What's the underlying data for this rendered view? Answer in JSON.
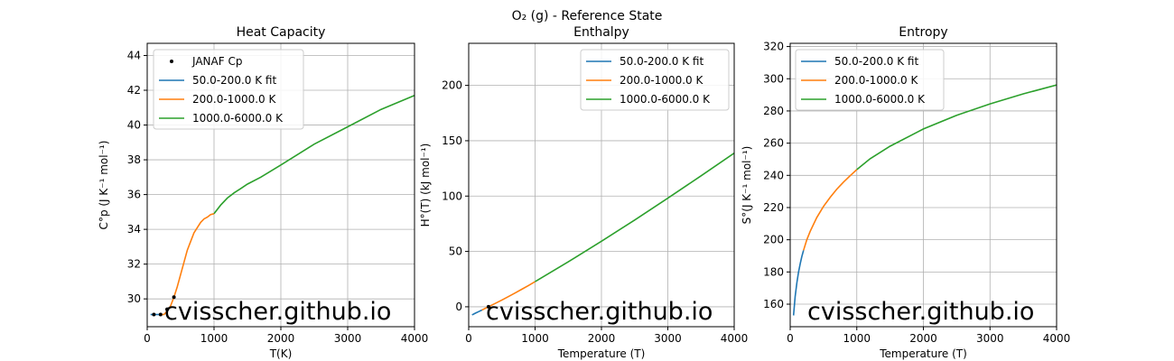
{
  "suptitle": "O₂ (g) - Reference State",
  "watermark": "cvisscher.github.io",
  "colors": {
    "blue": "#1f77b4",
    "orange": "#ff7f0e",
    "green": "#2ca02c",
    "grid": "#b0b0b0",
    "watermark": "#bfbfbf"
  },
  "chart_data": [
    {
      "type": "line",
      "title": "Heat Capacity",
      "xlabel": "T(K)",
      "ylabel": "C°p (J K⁻¹ mol⁻¹)",
      "xlim": [
        0,
        4000
      ],
      "ylim": [
        28.4,
        44.7
      ],
      "xticks": [
        0,
        1000,
        2000,
        3000,
        4000
      ],
      "yticks": [
        30,
        32,
        34,
        36,
        38,
        40,
        42,
        44
      ],
      "grid": true,
      "legend": "upper-left",
      "series": [
        {
          "name": "JANAF Cp",
          "kind": "points",
          "color": "#000000",
          "x": [
            100,
            200,
            298.15,
            300,
            400
          ],
          "y": [
            29.1,
            29.1,
            29.4,
            29.4,
            30.1
          ]
        },
        {
          "name": "50.0-200.0 K fit",
          "kind": "line",
          "color": "#1f77b4",
          "x": [
            50,
            100,
            150,
            200
          ],
          "y": [
            29.1,
            29.1,
            29.1,
            29.1
          ]
        },
        {
          "name": "200.0-1000.0 K",
          "kind": "line",
          "color": "#ff7f0e",
          "x": [
            200,
            250,
            300,
            350,
            400,
            450,
            500,
            550,
            600,
            650,
            700,
            750,
            800,
            850,
            900,
            950,
            1000
          ],
          "y": [
            29.1,
            29.1,
            29.3,
            29.6,
            30.1,
            30.7,
            31.4,
            32.1,
            32.8,
            33.3,
            33.8,
            34.1,
            34.4,
            34.6,
            34.7,
            34.85,
            34.9
          ]
        },
        {
          "name": "1000.0-6000.0 K",
          "kind": "line",
          "color": "#2ca02c",
          "x": [
            1000,
            1100,
            1200,
            1300,
            1400,
            1500,
            1700,
            2000,
            2500,
            3000,
            3500,
            4000
          ],
          "y": [
            34.9,
            35.4,
            35.8,
            36.1,
            36.35,
            36.6,
            37.0,
            37.7,
            38.9,
            39.9,
            40.9,
            41.7
          ]
        }
      ]
    },
    {
      "type": "line",
      "title": "Enthalpy",
      "xlabel": "Temperature (T)",
      "ylabel": "H°(T) (kJ mol⁻¹)",
      "xlim": [
        0,
        4000
      ],
      "ylim": [
        -18,
        238
      ],
      "xticks": [
        0,
        1000,
        2000,
        3000,
        4000
      ],
      "yticks": [
        0,
        50,
        100,
        150,
        200
      ],
      "grid": true,
      "legend": "upper-right",
      "series": [
        {
          "name": "",
          "kind": "points",
          "color": "#000000",
          "x": [
            298.15
          ],
          "y": [
            0
          ]
        },
        {
          "name": "50.0-200.0 K fit",
          "kind": "line",
          "color": "#1f77b4",
          "x": [
            50,
            100,
            150,
            200
          ],
          "y": [
            -7.3,
            -5.8,
            -4.4,
            -2.9
          ]
        },
        {
          "name": "200.0-1000.0 K",
          "kind": "line",
          "color": "#ff7f0e",
          "x": [
            200,
            300,
            400,
            500,
            600,
            700,
            800,
            900,
            1000
          ],
          "y": [
            -2.9,
            0.1,
            3.0,
            6.1,
            9.2,
            12.5,
            15.8,
            19.2,
            22.7
          ]
        },
        {
          "name": "1000.0-6000.0 K",
          "kind": "line",
          "color": "#2ca02c",
          "x": [
            1000,
            1500,
            2000,
            2500,
            3000,
            3500,
            4000
          ],
          "y": [
            22.7,
            40.6,
            59.2,
            78.4,
            98.1,
            118.3,
            138.9
          ]
        }
      ]
    },
    {
      "type": "line",
      "title": "Entropy",
      "xlabel": "Temperature (T)",
      "ylabel": "S°(J K⁻¹ mol⁻¹)",
      "xlim": [
        0,
        4000
      ],
      "ylim": [
        146,
        322
      ],
      "xticks": [
        0,
        1000,
        2000,
        3000,
        4000
      ],
      "yticks": [
        160,
        180,
        200,
        220,
        240,
        260,
        280,
        300,
        320
      ],
      "grid": true,
      "legend": "upper-left",
      "series": [
        {
          "name": "50.0-200.0 K fit",
          "kind": "line",
          "color": "#1f77b4",
          "x": [
            50,
            75,
            100,
            125,
            150,
            175,
            200
          ],
          "y": [
            153.0,
            164.8,
            173.3,
            179.8,
            185.1,
            189.6,
            193.5
          ]
        },
        {
          "name": "200.0-1000.0 K",
          "kind": "line",
          "color": "#ff7f0e",
          "x": [
            200,
            250,
            300,
            400,
            500,
            600,
            700,
            800,
            900,
            1000
          ],
          "y": [
            193.5,
            200.0,
            205.2,
            213.9,
            220.7,
            226.4,
            231.4,
            235.8,
            239.8,
            243.6
          ]
        },
        {
          "name": "1000.0-6000.0 K",
          "kind": "line",
          "color": "#2ca02c",
          "x": [
            1000,
            1200,
            1500,
            2000,
            2500,
            3000,
            3500,
            4000
          ],
          "y": [
            243.6,
            250.3,
            258.1,
            268.8,
            277.3,
            284.4,
            290.6,
            296.1
          ]
        }
      ]
    }
  ]
}
